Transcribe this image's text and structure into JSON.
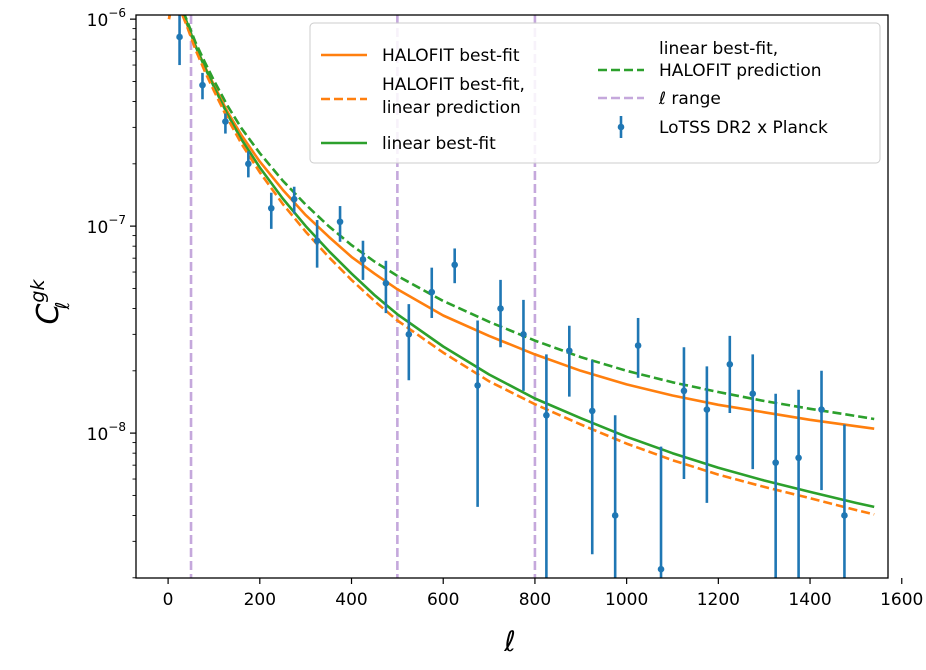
{
  "chart_data": {
    "type": "line",
    "title": "",
    "xlabel": "ℓ",
    "ylabel_main": "C",
    "ylabel_sub": "ℓ",
    "ylabel_sup": "gk",
    "xlim": [
      -70,
      1570
    ],
    "ylim_log10": [
      -8.7,
      -5.98
    ],
    "x_ticks": [
      {
        "value": 0,
        "label": "0"
      },
      {
        "value": 200,
        "label": "200"
      },
      {
        "value": 400,
        "label": "400"
      },
      {
        "value": 600,
        "label": "600"
      },
      {
        "value": 800,
        "label": "800"
      },
      {
        "value": 1000,
        "label": "1000"
      },
      {
        "value": 1200,
        "label": "1200"
      },
      {
        "value": 1400,
        "label": "1400"
      },
      {
        "value": 1600,
        "label": "1600"
      }
    ],
    "y_ticks": [
      {
        "exp": -6,
        "base": "10",
        "sup": "−6"
      },
      {
        "exp": -7,
        "base": "10",
        "sup": "−7"
      },
      {
        "exp": -8,
        "base": "10",
        "sup": "−8"
      }
    ],
    "vlines": [
      50,
      500,
      800
    ],
    "series": [
      {
        "name": "HALOFIT best-fit",
        "color": "#ff7f0e",
        "dash": "solid",
        "x": [
          2,
          8,
          15,
          25,
          40,
          60,
          80,
          100,
          130,
          160,
          200,
          250,
          300,
          350,
          400,
          450,
          500,
          600,
          700,
          800,
          900,
          1000,
          1100,
          1200,
          1300,
          1400,
          1500,
          1540
        ],
        "y": [
          1e-06,
          1.2e-06,
          1.26e-06,
          1.15e-06,
          9.6e-07,
          7.4e-07,
          5.9e-07,
          4.8e-07,
          3.55e-07,
          2.75e-07,
          2.05e-07,
          1.5e-07,
          1.13e-07,
          8.9e-08,
          7.1e-08,
          5.9e-08,
          4.95e-08,
          3.7e-08,
          2.95e-08,
          2.4e-08,
          2e-08,
          1.72e-08,
          1.52e-08,
          1.37e-08,
          1.26e-08,
          1.16e-08,
          1.08e-08,
          1.05e-08
        ]
      },
      {
        "name": "HALOFIT best-fit, linear prediction",
        "color": "#ff7f0e",
        "dash": "dashed",
        "x": [
          2,
          8,
          15,
          25,
          40,
          60,
          80,
          100,
          130,
          160,
          200,
          250,
          300,
          350,
          400,
          450,
          500,
          600,
          700,
          800,
          900,
          1000,
          1100,
          1200,
          1300,
          1400,
          1500,
          1540
        ],
        "y": [
          1e-06,
          1.2e-06,
          1.25e-06,
          1.13e-06,
          9.4e-07,
          7.1e-07,
          5.6e-07,
          4.5e-07,
          3.3e-07,
          2.5e-07,
          1.82e-07,
          1.28e-07,
          9.4e-08,
          7.1e-08,
          5.5e-08,
          4.35e-08,
          3.5e-08,
          2.45e-08,
          1.78e-08,
          1.38e-08,
          1.1e-08,
          8.9e-09,
          7.4e-09,
          6.3e-09,
          5.5e-09,
          4.85e-09,
          4.25e-09,
          4.05e-09
        ]
      },
      {
        "name": "linear best-fit",
        "color": "#2ca02c",
        "dash": "solid",
        "x": [
          2,
          8,
          15,
          25,
          40,
          60,
          80,
          100,
          130,
          160,
          200,
          250,
          300,
          350,
          400,
          450,
          500,
          600,
          700,
          800,
          900,
          1000,
          1100,
          1200,
          1300,
          1400,
          1500,
          1540
        ],
        "y": [
          1.06e-06,
          1.26e-06,
          1.3e-06,
          1.18e-06,
          9.8e-07,
          7.4e-07,
          5.85e-07,
          4.7e-07,
          3.45e-07,
          2.62e-07,
          1.92e-07,
          1.36e-07,
          1e-07,
          7.6e-08,
          5.9e-08,
          4.65e-08,
          3.75e-08,
          2.62e-08,
          1.92e-08,
          1.47e-08,
          1.18e-08,
          9.6e-09,
          8e-09,
          6.8e-09,
          5.9e-09,
          5.2e-09,
          4.6e-09,
          4.4e-09
        ]
      },
      {
        "name": "linear best-fit, HALOFIT prediction",
        "color": "#2ca02c",
        "dash": "dashed",
        "x": [
          2,
          8,
          15,
          25,
          40,
          60,
          80,
          100,
          130,
          160,
          200,
          250,
          300,
          350,
          400,
          450,
          500,
          600,
          700,
          800,
          900,
          1000,
          1100,
          1200,
          1300,
          1400,
          1500,
          1540
        ],
        "y": [
          1.06e-06,
          1.26e-06,
          1.31e-06,
          1.2e-06,
          1e-06,
          7.7e-07,
          6.2e-07,
          5.05e-07,
          3.8e-07,
          2.97e-07,
          2.25e-07,
          1.66e-07,
          1.27e-07,
          1e-07,
          8.1e-08,
          6.75e-08,
          5.75e-08,
          4.35e-08,
          3.45e-08,
          2.8e-08,
          2.33e-08,
          2e-08,
          1.76e-08,
          1.58e-08,
          1.43e-08,
          1.31e-08,
          1.21e-08,
          1.17e-08
        ]
      }
    ],
    "vline_legend": {
      "name": "ℓ range",
      "color": "#c5a8dc"
    },
    "errorbars": {
      "name": "LoTSS DR2 x Planck",
      "color": "#1f77b4",
      "x": [
        25,
        75,
        125,
        175,
        225,
        275,
        325,
        375,
        425,
        475,
        525,
        575,
        625,
        675,
        725,
        775,
        825,
        875,
        925,
        975,
        1025,
        1075,
        1125,
        1175,
        1225,
        1275,
        1325,
        1375,
        1425,
        1475
      ],
      "y": [
        8.2e-07,
        4.8e-07,
        3.2e-07,
        2e-07,
        1.22e-07,
        1.35e-07,
        8.5e-08,
        1.05e-07,
        6.9e-08,
        5.3e-08,
        3e-08,
        4.8e-08,
        6.5e-08,
        1.7e-08,
        4e-08,
        3e-08,
        1.22e-08,
        2.5e-08,
        1.28e-08,
        4e-09,
        2.65e-08,
        2.2e-09,
        1.6e-08,
        1.3e-08,
        2.15e-08,
        1.55e-08,
        7.2e-09,
        7.6e-09,
        1.3e-08,
        4e-09
      ],
      "ylo": [
        6e-07,
        4.1e-07,
        2.8e-07,
        1.72e-07,
        9.7e-08,
        1.15e-07,
        6.3e-08,
        8.4e-08,
        5.5e-08,
        3.8e-08,
        1.8e-08,
        3.6e-08,
        5.3e-08,
        4.4e-09,
        2.6e-08,
        1.6e-08,
        2e-09,
        1.5e-08,
        2.6e-09,
        2e-09,
        1.85e-08,
        2e-09,
        6e-09,
        4.6e-09,
        1.25e-08,
        6.7e-09,
        2e-09,
        2e-09,
        5.3e-09,
        2e-09
      ],
      "yhi": [
        1.05e-06,
        5.5e-07,
        3.5e-07,
        2.3e-07,
        1.45e-07,
        1.55e-07,
        1.07e-07,
        1.25e-07,
        8.5e-08,
        6.8e-08,
        4.2e-08,
        6.3e-08,
        7.8e-08,
        3.5e-08,
        5.5e-08,
        4.4e-08,
        2.4e-08,
        3.3e-08,
        2.25e-08,
        1.22e-08,
        3.6e-08,
        8.6e-09,
        2.6e-08,
        2.1e-08,
        2.95e-08,
        2.4e-08,
        1.55e-08,
        1.62e-08,
        2e-08,
        1.1e-08
      ]
    },
    "legend_position": "top-right"
  }
}
